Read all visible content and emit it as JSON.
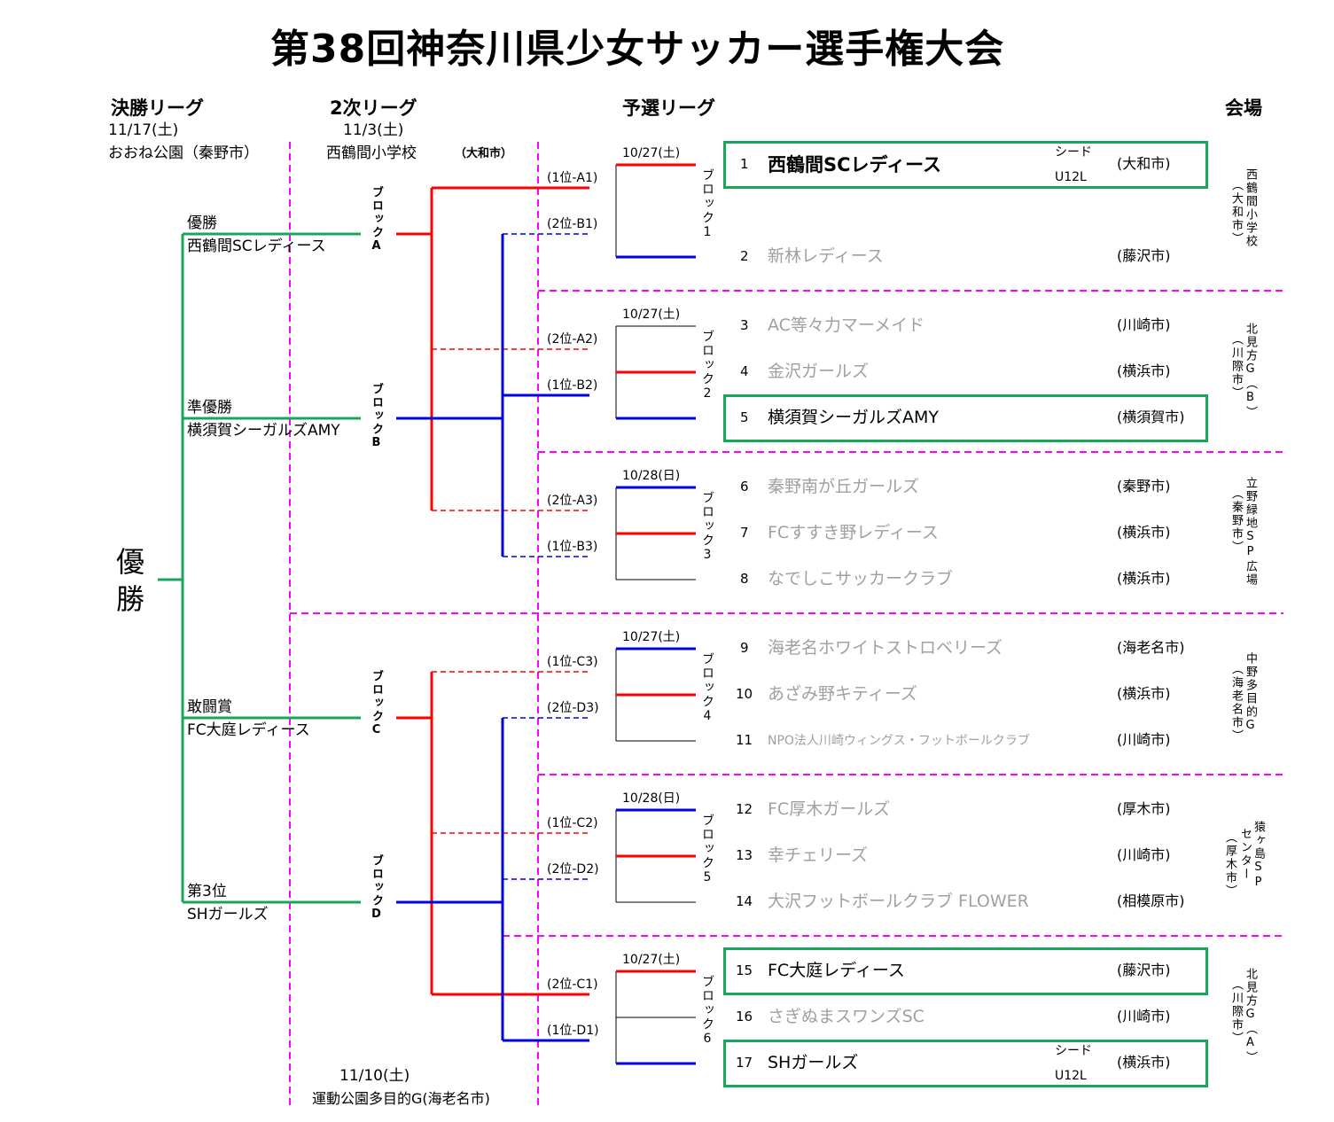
{
  "title": "第38回神奈川県少女サッカー選手権大会",
  "headers": {
    "final": "決勝リーグ",
    "second": "2次リーグ",
    "prelim": "予選リーグ",
    "venue": "会場"
  },
  "final_round": {
    "date": "11/17(土)",
    "venue": "おおね公園（秦野市）"
  },
  "second_round": {
    "date": "11/3(土)",
    "venue": "西鶴間小学校",
    "city": "（大和市）"
  },
  "second_round_b": {
    "date": "11/10(土)",
    "venue": "運動公園多目的G(海老名市)"
  },
  "champion_label": [
    "優",
    "勝"
  ],
  "results": [
    {
      "award": "優勝",
      "team": "西鶴間SCレディース"
    },
    {
      "award": "準優勝",
      "team": "横須賀シーガルズAMY"
    },
    {
      "award": "敢闘賞",
      "team": "FC大庭レディース"
    },
    {
      "award": "第3位",
      "team": "SHガールズ"
    }
  ],
  "second_blocks": [
    "ブロックA",
    "ブロックB",
    "ブロックC",
    "ブロックD"
  ],
  "qualifiers": [
    "(1位-A1)",
    "(2位-B1)",
    "(2位-A2)",
    "(1位-B2)",
    "(2位-A3)",
    "(1位-B3)",
    "(1位-C3)",
    "(2位-D3)",
    "(1位-C2)",
    "(2位-D2)",
    "(2位-C1)",
    "(1位-D1)"
  ],
  "prelim_blocks": [
    {
      "label": "ブロック1",
      "date": "10/27(土)"
    },
    {
      "label": "ブロック2",
      "date": "10/27(土)"
    },
    {
      "label": "ブロック3",
      "date": "10/28(日)"
    },
    {
      "label": "ブロック4",
      "date": "10/27(土)"
    },
    {
      "label": "ブロック5",
      "date": "10/28(日)"
    },
    {
      "label": "ブロック6",
      "date": "10/27(土)"
    }
  ],
  "seed": {
    "label": "シード",
    "league": "U12L"
  },
  "teams": [
    {
      "no": "1",
      "name": "西鶴間SCレディース",
      "city": "(大和市)",
      "advanced": true
    },
    {
      "no": "2",
      "name": "新林レディース",
      "city": "(藤沢市)",
      "advanced": false
    },
    {
      "no": "3",
      "name": "AC等々力マーメイド",
      "city": "(川崎市)",
      "advanced": false
    },
    {
      "no": "4",
      "name": "金沢ガールズ",
      "city": "(横浜市)",
      "advanced": false
    },
    {
      "no": "5",
      "name": "横須賀シーガルズAMY",
      "city": "(横須賀市)",
      "advanced": true
    },
    {
      "no": "6",
      "name": "秦野南が丘ガールズ",
      "city": "(秦野市)",
      "advanced": false
    },
    {
      "no": "7",
      "name": "FCすすき野レディース",
      "city": "(横浜市)",
      "advanced": false
    },
    {
      "no": "8",
      "name": "なでしこサッカークラブ",
      "city": "(横浜市)",
      "advanced": false
    },
    {
      "no": "9",
      "name": "海老名ホワイトストロベリーズ",
      "city": "(海老名市)",
      "advanced": false
    },
    {
      "no": "10",
      "name": "あざみ野キティーズ",
      "city": "(横浜市)",
      "advanced": false
    },
    {
      "no": "11",
      "name": "NPO法人川崎ウィングス・フットボールクラブ",
      "city": "(川崎市)",
      "advanced": false
    },
    {
      "no": "12",
      "name": "FC厚木ガールズ",
      "city": "(厚木市)",
      "advanced": false
    },
    {
      "no": "13",
      "name": "幸チェリーズ",
      "city": "(川崎市)",
      "advanced": false
    },
    {
      "no": "14",
      "name": "大沢フットボールクラブ FLOWER",
      "city": "(相模原市)",
      "advanced": false
    },
    {
      "no": "15",
      "name": "FC大庭レディース",
      "city": "(藤沢市)",
      "advanced": true
    },
    {
      "no": "16",
      "name": "さぎぬまスワンズSC",
      "city": "(川崎市)",
      "advanced": false
    },
    {
      "no": "17",
      "name": "SHガールズ",
      "city": "(横浜市)",
      "advanced": true
    }
  ],
  "venues": [
    {
      "name": "西鶴間小学校",
      "city": "（大和市）"
    },
    {
      "name": "北見方G（B）",
      "city": "（川際市）"
    },
    {
      "name": "立野緑地SP広場",
      "city": "（秦野市）"
    },
    {
      "name": "中野多目的G",
      "city": "（海老名市）"
    },
    {
      "name": "猿ヶ島SP",
      "name2": "センター",
      "city": "（厚木市）"
    },
    {
      "name": "北見方G（A）",
      "city": "（川際市）"
    }
  ],
  "colors": {
    "advance": "#1aa65a",
    "red": "#ff0000",
    "blue": "#0000e0",
    "divider": "#ff00ff"
  }
}
